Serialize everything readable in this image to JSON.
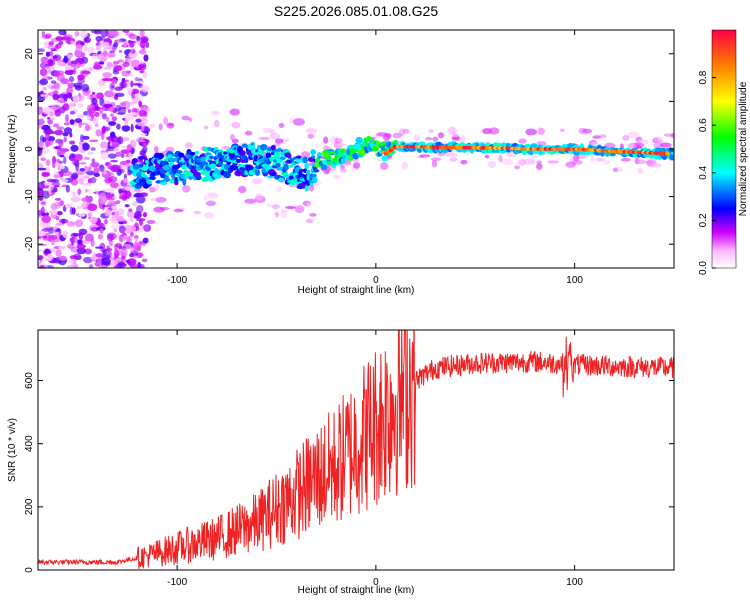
{
  "title": "S225.2026.085.01.08.G25",
  "chart_data": [
    {
      "type": "heatmap",
      "name": "spectrogram",
      "xlabel": "Height of straight line (km)",
      "ylabel": "Frequency (Hz)",
      "xlim": [
        -170,
        150
      ],
      "ylim": [
        -25,
        25
      ],
      "x_ticks": [
        -100,
        0,
        100
      ],
      "y_ticks": [
        -20,
        -10,
        0,
        10,
        20
      ],
      "frequency_ridge": {
        "x": [
          -120,
          -110,
          -100,
          -90,
          -80,
          -70,
          -60,
          -50,
          -40,
          -35,
          -30,
          -25,
          -20,
          -15,
          -10,
          -5,
          0,
          5,
          10,
          20,
          40,
          60,
          80,
          100,
          120,
          150
        ],
        "y": [
          -5,
          -4.5,
          -4,
          -3.5,
          -3,
          -2.5,
          -2,
          -3,
          -4.5,
          -5.5,
          -3,
          -2,
          -2,
          -1,
          0,
          1,
          0.5,
          -1,
          0.5,
          0.5,
          0.3,
          0.2,
          0,
          0,
          -0.5,
          -1
        ]
      },
      "colorbar": {
        "label": "Normalized spectral amplitude",
        "range": [
          0,
          1
        ],
        "ticks": [
          0.0,
          0.2,
          0.4,
          0.6,
          0.8
        ]
      }
    },
    {
      "type": "line",
      "name": "snr",
      "xlabel": "Height of straight line (km)",
      "ylabel": "SNR (10 * v/v)",
      "xlim": [
        -170,
        150
      ],
      "ylim": [
        0,
        760
      ],
      "x_ticks": [
        -100,
        0,
        100
      ],
      "y_ticks": [
        0,
        200,
        400,
        600
      ],
      "color": "#ee2222",
      "envelope": {
        "x": [
          -170,
          -130,
          -115,
          -100,
          -80,
          -60,
          -40,
          -30,
          -20,
          -10,
          0,
          10,
          20,
          30,
          50,
          80,
          100,
          120,
          150
        ],
        "y": [
          25,
          25,
          45,
          70,
          100,
          150,
          240,
          290,
          330,
          400,
          460,
          540,
          600,
          640,
          655,
          660,
          650,
          645,
          640
        ]
      }
    }
  ]
}
